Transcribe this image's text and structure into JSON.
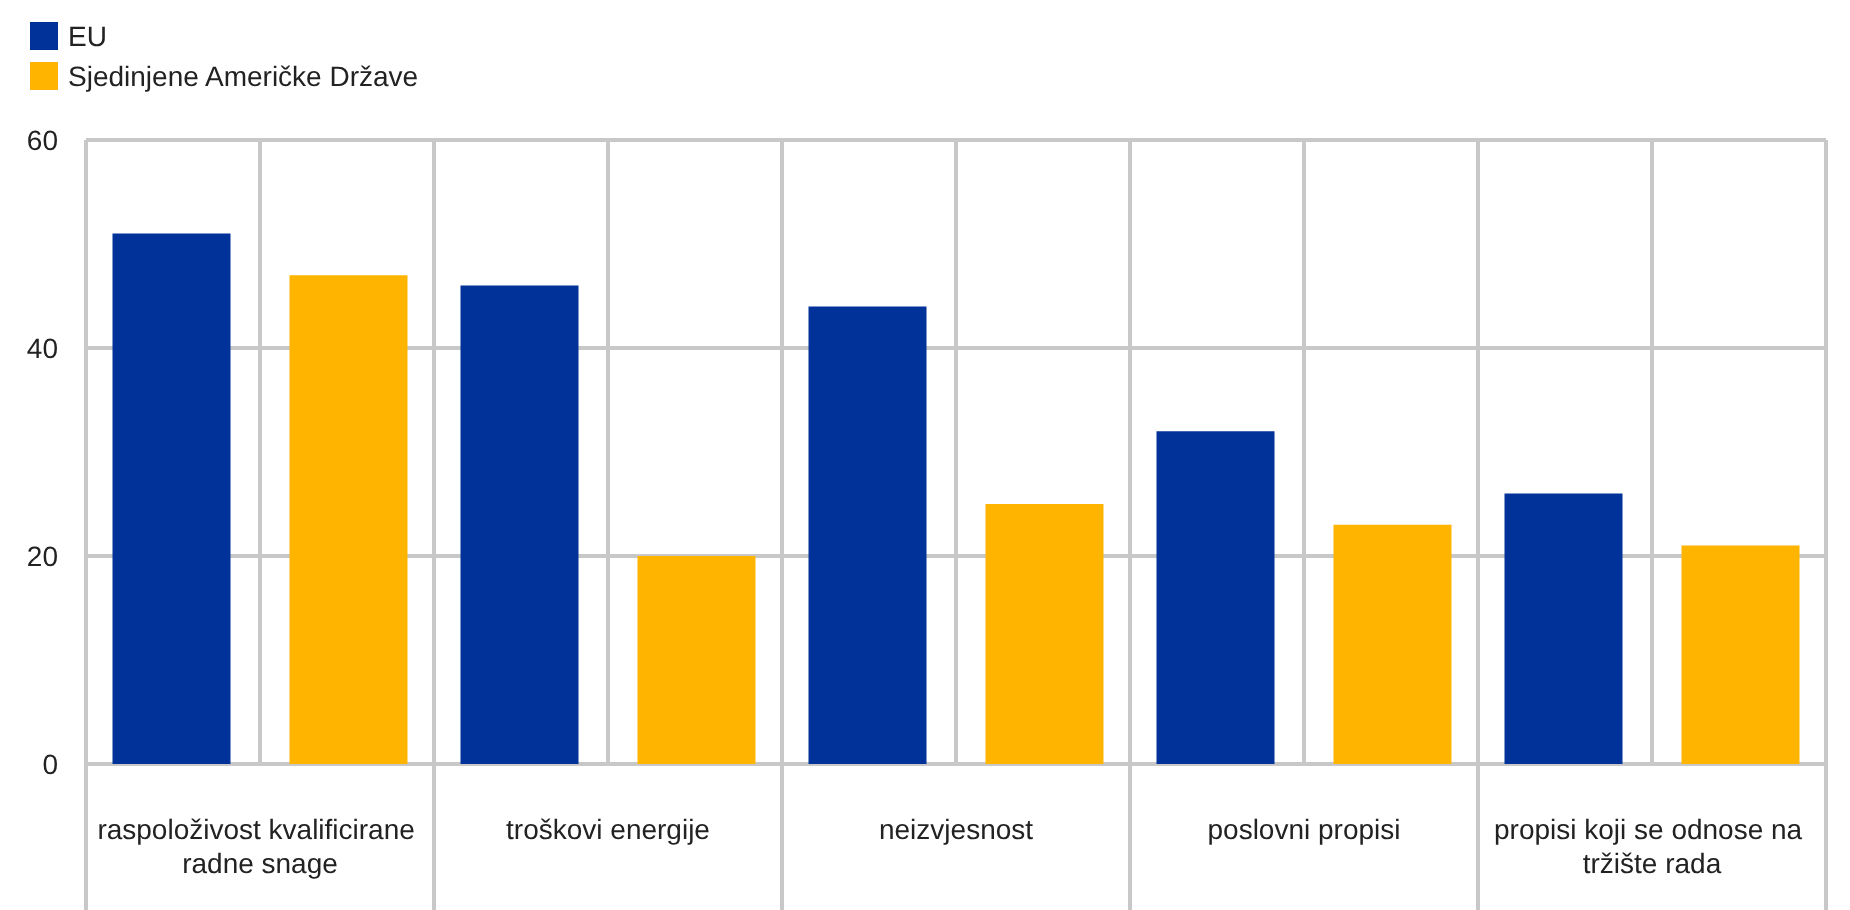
{
  "chart_data": {
    "type": "bar",
    "categories": [
      "raspoloživost kvalificirane radne snage",
      "troškovi energije",
      "neizvjesnost",
      "poslovni propisi",
      "propisi koji se odnose na tržište rada"
    ],
    "series": [
      {
        "name": "EU",
        "color": "#003299",
        "values": [
          51,
          46,
          44,
          32,
          26
        ]
      },
      {
        "name": "Sjedinjene Američke Države",
        "color": "#ffb400",
        "values": [
          47,
          20,
          25,
          23,
          21
        ]
      }
    ],
    "ylim": [
      0,
      60
    ],
    "yticks": [
      0,
      20,
      40,
      60
    ],
    "grid": true,
    "legend": "top left"
  }
}
